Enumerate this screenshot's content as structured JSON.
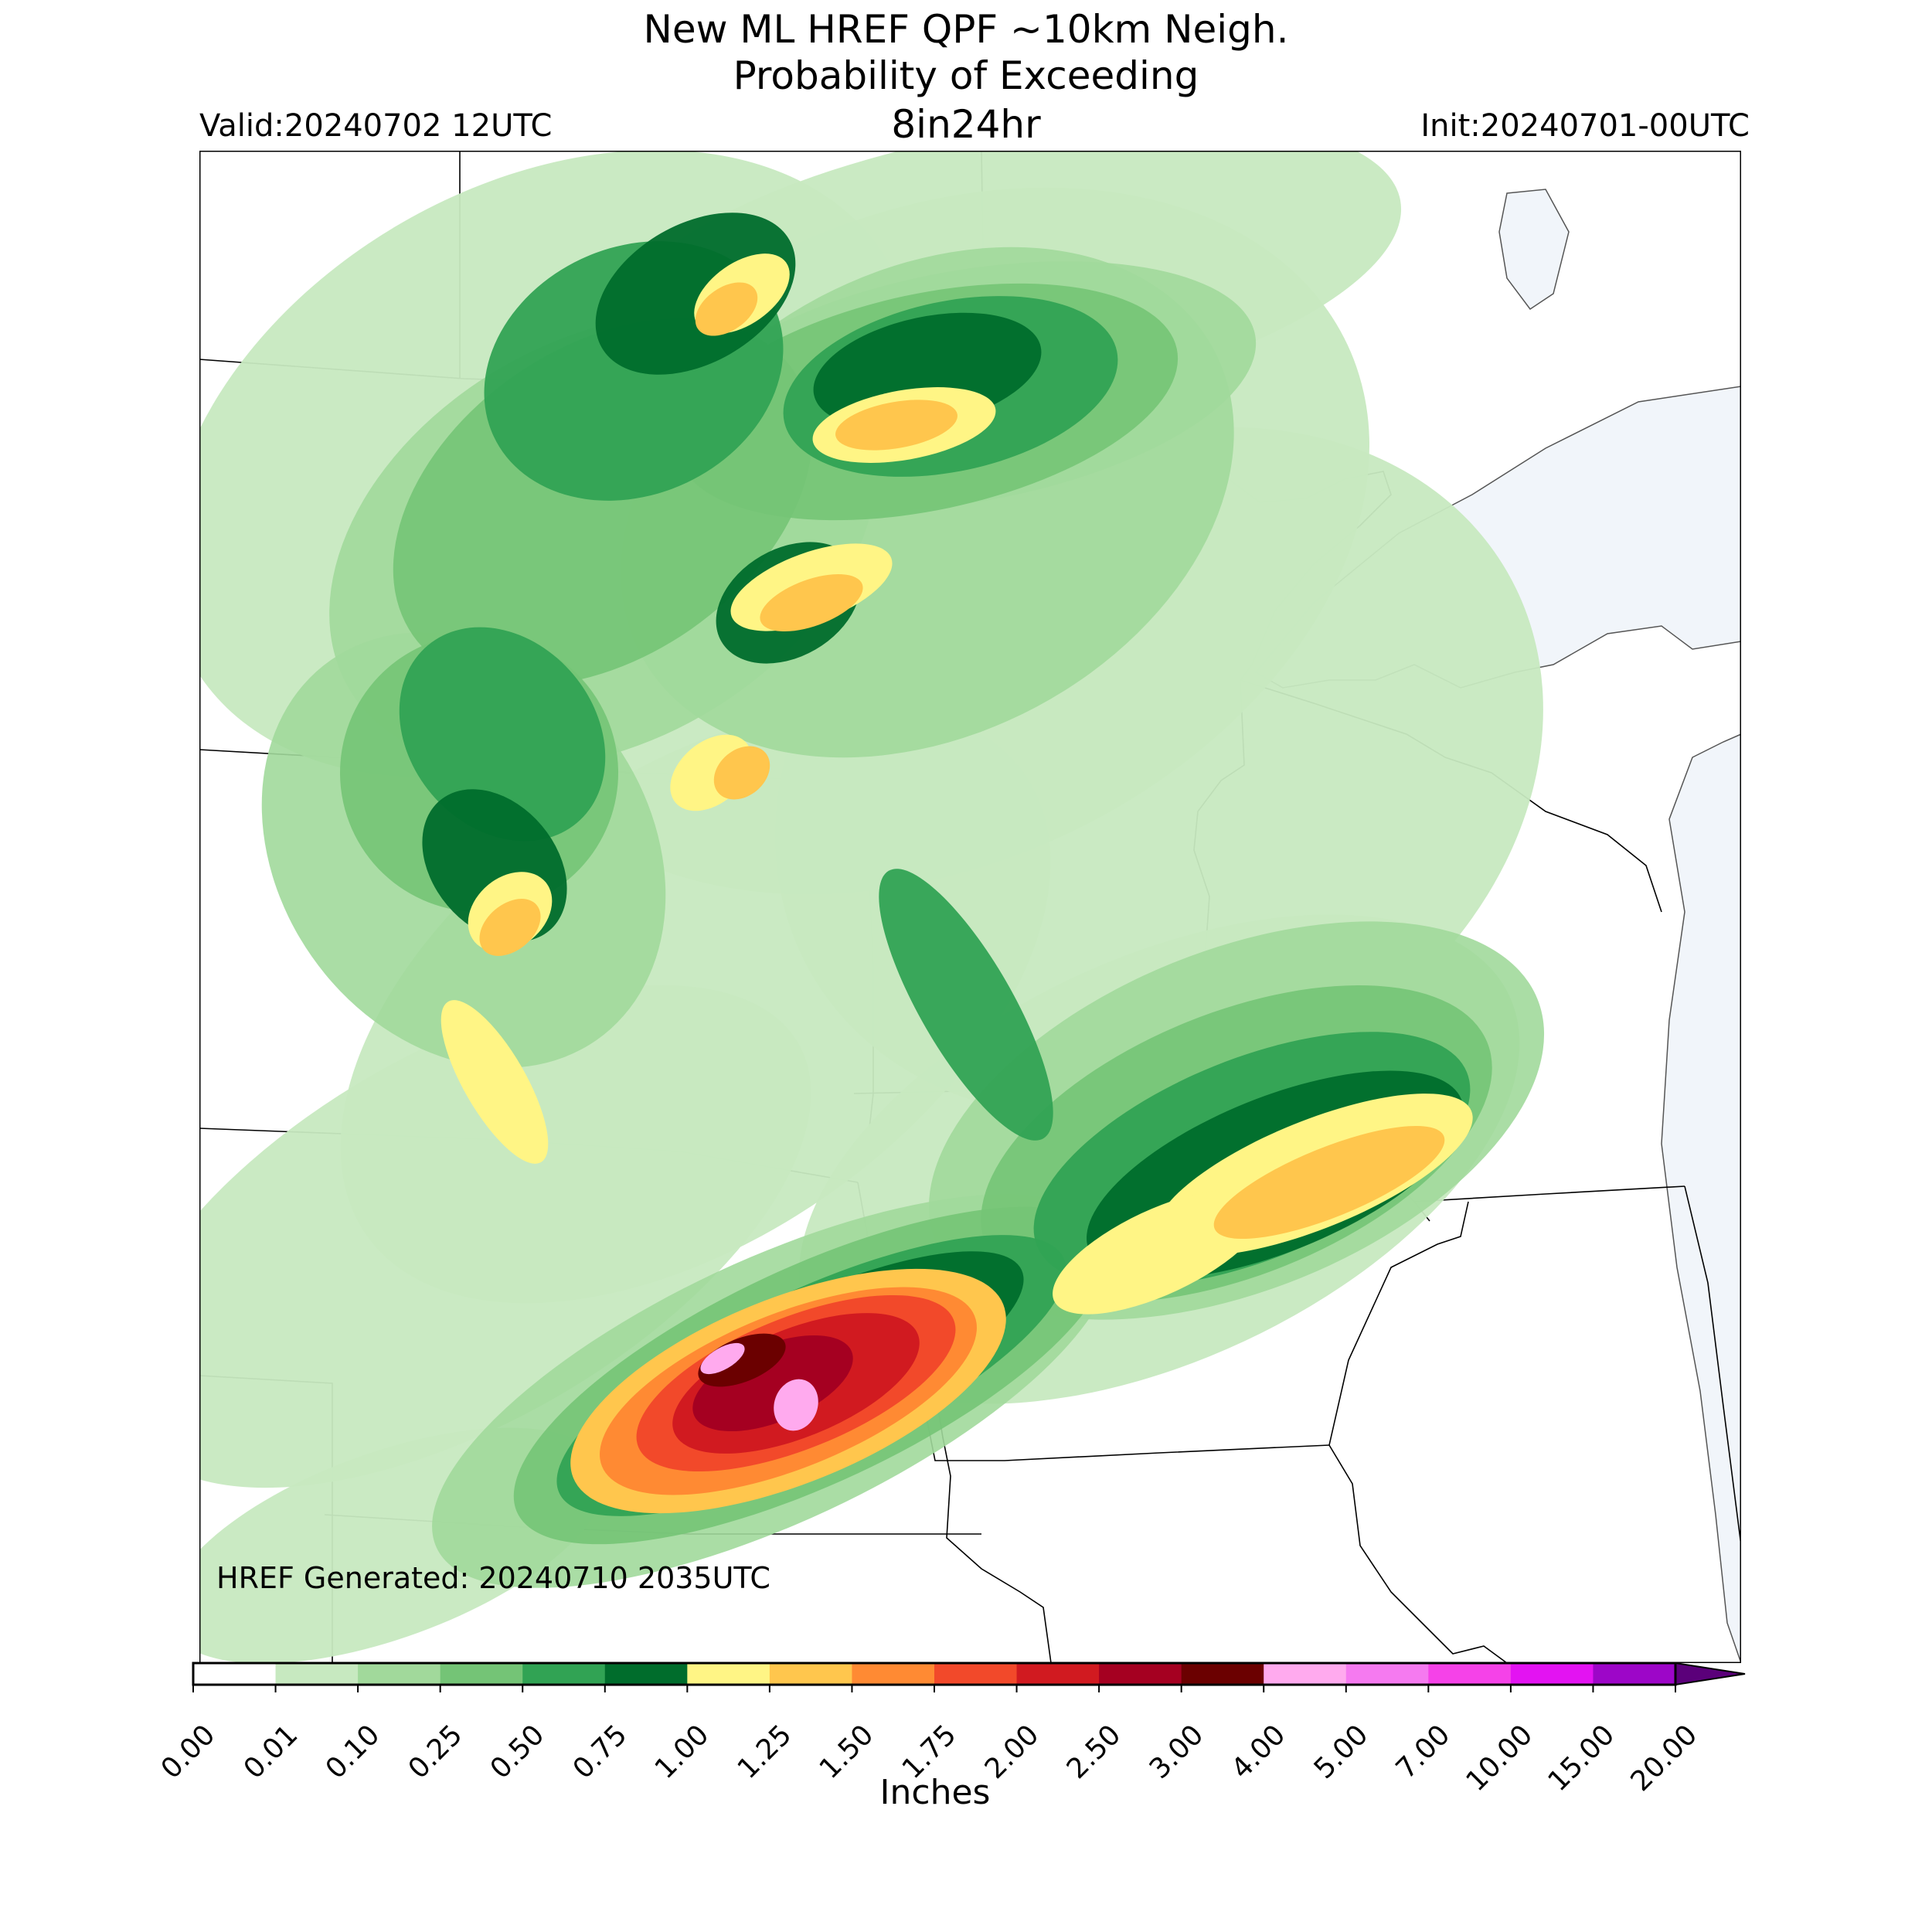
{
  "header": {
    "title_line1": "New ML HREF QPF ~10km Neigh.",
    "title_line2": "Probability of Exceeding",
    "title_line3": "8in24hr",
    "valid": "Valid:20240702 12UTC",
    "init": "Init:20240701-00UTC"
  },
  "map": {
    "generated": "HREF Generated: 20240710 2035UTC",
    "lake_color": "#f1f5fa",
    "border_color": "#000000"
  },
  "colorbar": {
    "label": "Inches",
    "ticks": [
      "0.00",
      "0.01",
      "0.10",
      "0.25",
      "0.50",
      "0.75",
      "1.00",
      "1.25",
      "1.50",
      "1.75",
      "2.00",
      "2.50",
      "3.00",
      "4.00",
      "5.00",
      "7.00",
      "10.00",
      "15.00",
      "20.00"
    ],
    "colors": [
      "#ffffff",
      "#c7e9c0",
      "#a1d99b",
      "#74c476",
      "#31a354",
      "#006d2c",
      "#fff585",
      "#ffc64d",
      "#ff8a33",
      "#f2492a",
      "#d11a20",
      "#a50021",
      "#6b0000",
      "#ffaaee",
      "#f57af0",
      "#f542e8",
      "#e313f2",
      "#9d06c8"
    ]
  }
}
